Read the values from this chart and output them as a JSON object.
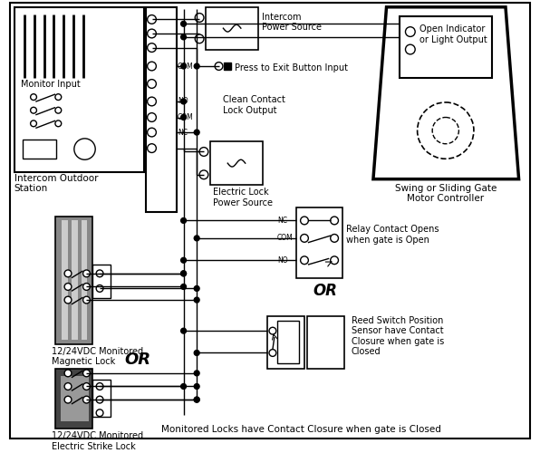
{
  "bg_color": "#ffffff",
  "lw": 1.0,
  "labels": {
    "monitor_input": "Monitor Input",
    "intercom_station": "Intercom Outdoor\nStation",
    "intercom_ps": "Intercom\nPower Source",
    "press_exit": "Press to Exit Button Input",
    "clean_contact": "Clean Contact\nLock Output",
    "electric_lock_ps": "Electric Lock\nPower Source",
    "magnetic_lock": "12/24VDC Monitored\nMagnetic Lock",
    "electric_strike": "12/24VDC Monitored\nElectric Strike Lock",
    "or_mid": "OR",
    "or_bot": "OR",
    "swing_gate": "Swing or Sliding Gate\nMotor Controller",
    "open_indicator": "Open Indicator\nor Light Output",
    "relay_contact": "Relay Contact Opens\nwhen gate is Open",
    "reed_switch": "Reed Switch Position\nSensor have Contact\nClosure when gate is\nClosed",
    "bottom_note": "Monitored Locks have Contact Closure when gate is Closed"
  }
}
